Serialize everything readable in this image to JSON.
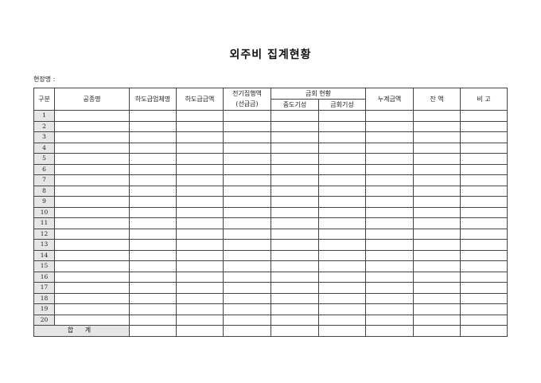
{
  "title": "외주비 집계현황",
  "site_label": "현장명 :",
  "headers": {
    "no": "구분",
    "work": "공종명",
    "sub_company": "하도급업체명",
    "sub_amount": "하도급금액",
    "prev_exec": "전기집행액",
    "prev_exec_sub": "(선급금)",
    "payment_status": "금회 현황",
    "interim": "중도기성",
    "current": "금회기성",
    "cumulative": "누계금액",
    "balance": "잔 액",
    "remarks": "비 고"
  },
  "rows": [
    "1",
    "2",
    "3",
    "4",
    "5",
    "6",
    "7",
    "8",
    "9",
    "10",
    "11",
    "12",
    "13",
    "14",
    "15",
    "16",
    "17",
    "18",
    "19",
    "20"
  ],
  "total_label": "합 계"
}
